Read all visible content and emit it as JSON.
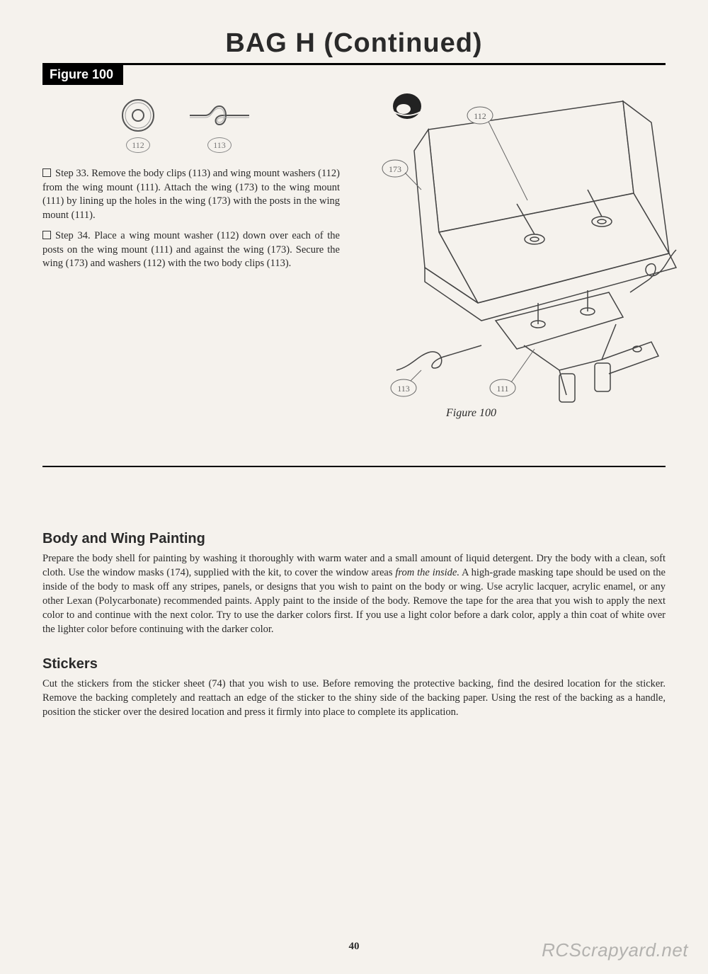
{
  "title": "BAG H (Continued)",
  "figure_label": "Figure 100",
  "parts": {
    "washer_callout": "112",
    "clip_callout": "113"
  },
  "steps": [
    {
      "text": "Step 33. Remove the body clips (113) and wing mount washers (112) from the wing mount (111). Attach the wing (173) to the wing mount (111) by lining up the holes in the wing (173) with the posts in the wing mount (111)."
    },
    {
      "text": "Step 34. Place a wing mount washer (112) down over each of the posts on the wing mount (111) and against the wing (173). Secure the wing (173) and washers (112) with the two body clips (113)."
    }
  ],
  "diagram_callouts": {
    "c112": "112",
    "c173": "173",
    "c113": "113",
    "c111": "111"
  },
  "figure_caption": "Figure 100",
  "sections": [
    {
      "heading": "Body and Wing Painting",
      "body_html": "Prepare the body shell for painting by washing it thoroughly with warm water and a small amount of liquid detergent. Dry the body with a clean, soft cloth. Use the window masks (174), supplied with the kit, to cover the window areas <span class=\"italic\">from the inside.</span> A high-grade masking tape should be used on the inside of the body to mask off any stripes, panels, or designs that you wish to paint on the body or wing. Use acrylic lacquer, acrylic enamel, or any other Lexan (Polycarbonate) recommended paints. Apply paint to the inside of the body. Remove the tape for the area that you wish to apply the next color to and continue with the next color. Try to use the darker colors first. If you use a light color before a dark color, apply a thin coat of white over the lighter color before continuing with the darker color."
    },
    {
      "heading": "Stickers",
      "body_html": "Cut the stickers from the sticker sheet (74) that you wish to use. Before removing the protective backing, find the desired location for the sticker. Remove the backing completely and reattach an edge of the sticker to the shiny side of the backing paper. Using the rest of the backing as a handle, position the sticker over the desired location and press it firmly into place to complete its application."
    }
  ],
  "page_number": "40",
  "watermark": "RCScrapyard.net",
  "colors": {
    "page_bg": "#f5f2ed",
    "ink": "#2a2a2a",
    "line": "#555"
  }
}
